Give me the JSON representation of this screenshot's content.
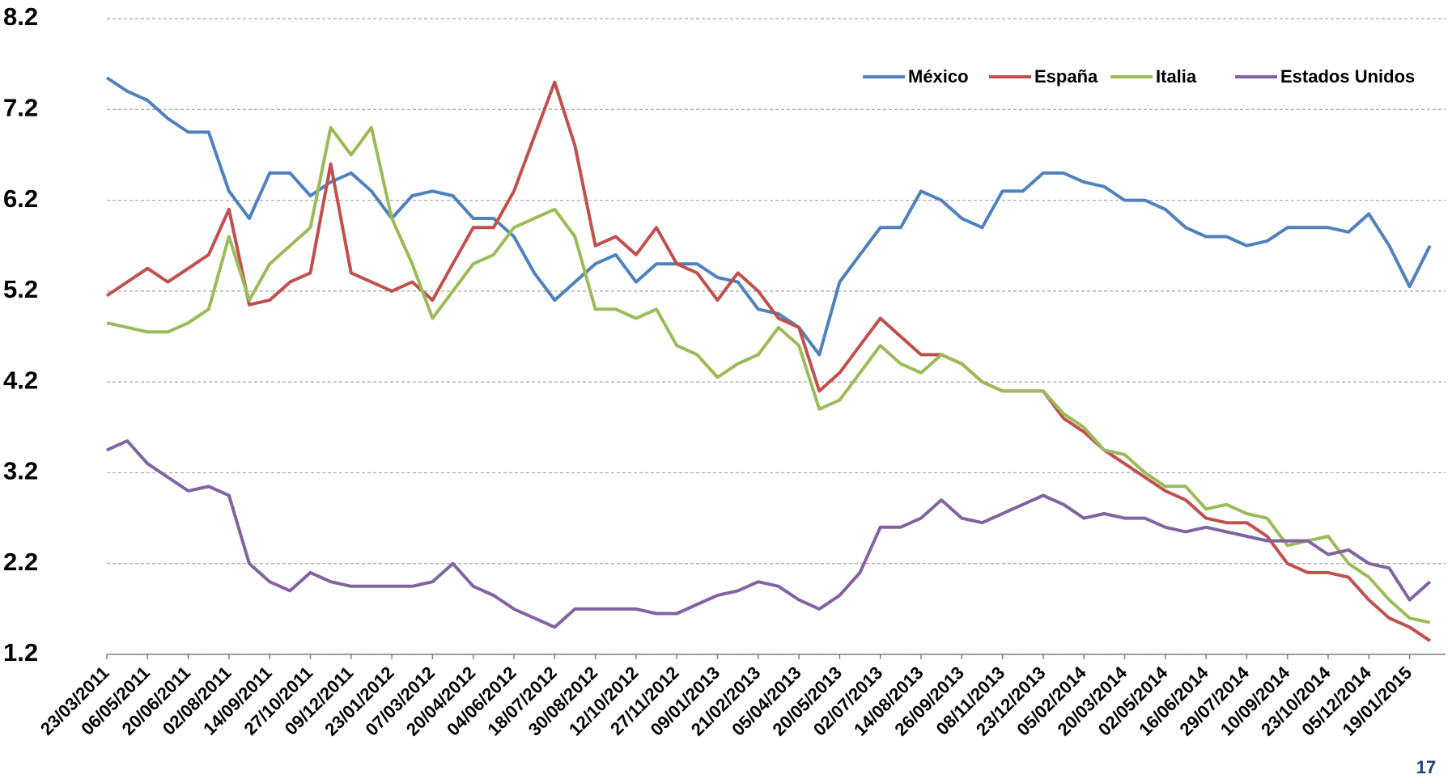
{
  "chart_data": {
    "type": "line",
    "categories": [
      "23/03/2011",
      null,
      "06/05/2011",
      null,
      "20/06/2011",
      null,
      "02/08/2011",
      null,
      "14/09/2011",
      null,
      "27/10/2011",
      null,
      "09/12/2011",
      null,
      "23/01/2012",
      null,
      "07/03/2012",
      null,
      "20/04/2012",
      null,
      "04/06/2012",
      null,
      "18/07/2012",
      null,
      "30/08/2012",
      null,
      "12/10/2012",
      null,
      "27/11/2012",
      null,
      "09/01/2013",
      null,
      "21/02/2013",
      null,
      "05/04/2013",
      null,
      "20/05/2013",
      null,
      "02/07/2013",
      null,
      "14/08/2013",
      null,
      "26/09/2013",
      null,
      "08/11/2013",
      null,
      "23/12/2013",
      null,
      "05/02/2014",
      null,
      "20/03/2014",
      null,
      "02/05/2014",
      null,
      "16/06/2014",
      null,
      "29/07/2014",
      null,
      "10/09/2014",
      null,
      "23/10/2014",
      null,
      "05/12/2014",
      null,
      "19/01/2015",
      null
    ],
    "series": [
      {
        "name": "México",
        "color": "#4f81bd",
        "values": [
          7.55,
          7.4,
          7.3,
          7.1,
          6.95,
          6.95,
          6.3,
          6.0,
          6.5,
          6.5,
          6.25,
          6.4,
          6.5,
          6.3,
          6.0,
          6.25,
          6.3,
          6.25,
          6.0,
          6.0,
          5.8,
          5.4,
          5.1,
          5.3,
          5.5,
          5.6,
          5.3,
          5.5,
          5.5,
          5.5,
          5.35,
          5.3,
          5.0,
          4.95,
          4.8,
          4.5,
          5.3,
          5.6,
          5.9,
          5.9,
          6.3,
          6.2,
          6.0,
          5.9,
          6.3,
          6.3,
          6.5,
          6.5,
          6.4,
          6.35,
          6.2,
          6.2,
          6.1,
          5.9,
          5.8,
          5.8,
          5.7,
          5.75,
          5.9,
          5.9,
          5.9,
          5.85,
          6.05,
          5.7,
          5.25,
          5.7
        ]
      },
      {
        "name": "España",
        "color": "#c0504d",
        "values": [
          5.15,
          5.3,
          5.45,
          5.3,
          5.45,
          5.6,
          6.1,
          5.05,
          5.1,
          5.3,
          5.4,
          6.6,
          5.4,
          5.3,
          5.2,
          5.3,
          5.1,
          5.5,
          5.9,
          5.9,
          6.3,
          6.9,
          7.5,
          6.8,
          5.7,
          5.8,
          5.6,
          5.9,
          5.5,
          5.4,
          5.1,
          5.4,
          5.2,
          4.9,
          4.8,
          4.1,
          4.3,
          4.6,
          4.9,
          4.7,
          4.5,
          4.5,
          4.4,
          4.2,
          4.1,
          4.1,
          4.1,
          3.8,
          3.65,
          3.45,
          3.3,
          3.15,
          3.0,
          2.9,
          2.7,
          2.65,
          2.65,
          2.5,
          2.2,
          2.1,
          2.1,
          2.05,
          1.8,
          1.6,
          1.5,
          1.35
        ]
      },
      {
        "name": "Italia",
        "color": "#9bbb59",
        "values": [
          4.85,
          4.8,
          4.75,
          4.75,
          4.85,
          5.0,
          5.8,
          5.1,
          5.5,
          5.7,
          5.9,
          7.0,
          6.7,
          7.0,
          6.0,
          5.5,
          4.9,
          5.2,
          5.5,
          5.6,
          5.9,
          6.0,
          6.1,
          5.8,
          5.0,
          5.0,
          4.9,
          5.0,
          4.6,
          4.5,
          4.25,
          4.4,
          4.5,
          4.8,
          4.6,
          3.9,
          4.0,
          4.3,
          4.6,
          4.4,
          4.3,
          4.5,
          4.4,
          4.2,
          4.1,
          4.1,
          4.1,
          3.85,
          3.7,
          3.45,
          3.4,
          3.2,
          3.05,
          3.05,
          2.8,
          2.85,
          2.75,
          2.7,
          2.4,
          2.45,
          2.5,
          2.2,
          2.05,
          1.8,
          1.6,
          1.55
        ]
      },
      {
        "name": "Estados Unidos",
        "color": "#8064a2",
        "values": [
          3.45,
          3.55,
          3.3,
          3.15,
          3.0,
          3.05,
          2.95,
          2.2,
          2.0,
          1.9,
          2.1,
          2.0,
          1.95,
          1.95,
          1.95,
          1.95,
          2.0,
          2.2,
          1.95,
          1.85,
          1.7,
          1.6,
          1.5,
          1.7,
          1.7,
          1.7,
          1.7,
          1.65,
          1.65,
          1.75,
          1.85,
          1.9,
          2.0,
          1.95,
          1.8,
          1.7,
          1.85,
          2.1,
          2.6,
          2.6,
          2.7,
          2.9,
          2.7,
          2.65,
          2.75,
          2.85,
          2.95,
          2.85,
          2.7,
          2.75,
          2.7,
          2.7,
          2.6,
          2.55,
          2.6,
          2.55,
          2.5,
          2.45,
          2.45,
          2.45,
          2.3,
          2.35,
          2.2,
          2.15,
          1.8,
          2.0
        ]
      }
    ],
    "ylim": [
      1.2,
      8.2
    ],
    "yticks": [
      1.2,
      2.2,
      3.2,
      4.2,
      5.2,
      6.2,
      7.2,
      8.2
    ],
    "grid": true,
    "legend": "top-right"
  },
  "page_number": "17"
}
